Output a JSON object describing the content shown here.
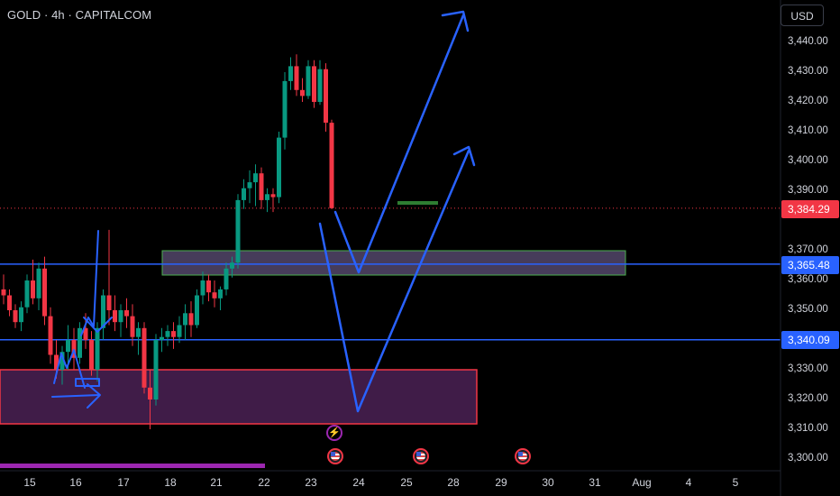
{
  "header": {
    "title": "GOLD · 4h · CAPITALCOM",
    "currency_button": "USD"
  },
  "price_axis": {
    "ticks": [
      "3,440.00",
      "3,430.00",
      "3,420.00",
      "3,410.00",
      "3,400.00",
      "3,390.00",
      "3,370.00",
      "3,360.00",
      "3,350.00",
      "3,330.00",
      "3,320.00",
      "3,310.00",
      "3,300.00"
    ],
    "tick_values": [
      3440,
      3430,
      3420,
      3410,
      3400,
      3390,
      3370,
      3360,
      3350,
      3330,
      3320,
      3310,
      3300
    ],
    "current_price_label": "3,384.29",
    "current_price": 3384.29,
    "level_labels": [
      {
        "text": "3,365.48",
        "value": 3365.48
      },
      {
        "text": "3,340.09",
        "value": 3340.09
      }
    ]
  },
  "time_axis": {
    "ticks": [
      "15",
      "16",
      "17",
      "18",
      "21",
      "22",
      "23",
      "24",
      "25",
      "28",
      "29",
      "30",
      "31",
      "Aug",
      "4",
      "5"
    ]
  },
  "colors": {
    "up": "#089981",
    "down": "#f23645",
    "drawing": "#2962ff",
    "zone_green": "#4caf50",
    "zone_red": "#f23645",
    "background": "#000000"
  },
  "events": {
    "icons": [
      "lightning-icon",
      "us-flag-icon",
      "us-flag-icon",
      "us-flag-icon"
    ]
  },
  "chart_data": {
    "type": "candlestick",
    "candles": [
      [
        3357,
        3362,
        3352,
        3355
      ],
      [
        3355,
        3357,
        3348,
        3350
      ],
      [
        3350,
        3352,
        3344,
        3346
      ],
      [
        3346,
        3353,
        3343,
        3351
      ],
      [
        3351,
        3362,
        3349,
        3360
      ],
      [
        3360,
        3367,
        3352,
        3354
      ],
      [
        3354,
        3366,
        3350,
        3364
      ],
      [
        3364,
        3368,
        3345,
        3348
      ],
      [
        3348,
        3351,
        3332,
        3335
      ],
      [
        3335,
        3340,
        3327,
        3330
      ],
      [
        3330,
        3338,
        3325,
        3336
      ],
      [
        3336,
        3345,
        3330,
        3340
      ],
      [
        3340,
        3344,
        3330,
        3334
      ],
      [
        3334,
        3346,
        3332,
        3344
      ],
      [
        3344,
        3349,
        3337,
        3340
      ],
      [
        3340,
        3343,
        3328,
        3330
      ],
      [
        3330,
        3346,
        3326,
        3344
      ],
      [
        3344,
        3357,
        3340,
        3355
      ],
      [
        3355,
        3377,
        3345,
        3350
      ],
      [
        3350,
        3355,
        3343,
        3346
      ],
      [
        3346,
        3352,
        3341,
        3350
      ],
      [
        3350,
        3354,
        3344,
        3348
      ],
      [
        3348,
        3352,
        3338,
        3341
      ],
      [
        3341,
        3346,
        3335,
        3344
      ],
      [
        3344,
        3346,
        3322,
        3324
      ],
      [
        3324,
        3330,
        3310,
        3320
      ],
      [
        3320,
        3342,
        3318,
        3340
      ],
      [
        3340,
        3344,
        3336,
        3341
      ],
      [
        3341,
        3345,
        3338,
        3343
      ],
      [
        3343,
        3346,
        3337,
        3341
      ],
      [
        3341,
        3348,
        3339,
        3345
      ],
      [
        3345,
        3352,
        3340,
        3349
      ],
      [
        3349,
        3353,
        3341,
        3345
      ],
      [
        3345,
        3357,
        3344,
        3355
      ],
      [
        3355,
        3363,
        3352,
        3360
      ],
      [
        3360,
        3362,
        3353,
        3356
      ],
      [
        3356,
        3360,
        3351,
        3354
      ],
      [
        3354,
        3358,
        3350,
        3357
      ],
      [
        3357,
        3366,
        3355,
        3364
      ],
      [
        3364,
        3368,
        3361,
        3366
      ],
      [
        3366,
        3389,
        3364,
        3387
      ],
      [
        3387,
        3394,
        3384,
        3391
      ],
      [
        3391,
        3397,
        3386,
        3393
      ],
      [
        3393,
        3399,
        3385,
        3396
      ],
      [
        3396,
        3398,
        3384,
        3387
      ],
      [
        3387,
        3391,
        3383,
        3389
      ],
      [
        3389,
        3391,
        3383,
        3388
      ],
      [
        3388,
        3410,
        3386,
        3408
      ],
      [
        3408,
        3430,
        3404,
        3427
      ],
      [
        3427,
        3435,
        3424,
        3432
      ],
      [
        3432,
        3436,
        3422,
        3424
      ],
      [
        3424,
        3428,
        3420,
        3422
      ],
      [
        3422,
        3434,
        3421,
        3432
      ],
      [
        3432,
        3434,
        3418,
        3420
      ],
      [
        3420,
        3434,
        3419,
        3431
      ],
      [
        3431,
        3433,
        3410,
        3413
      ],
      [
        3413,
        3414,
        3384,
        3384.29
      ]
    ],
    "levels": [
      3365.48,
      3340.09
    ],
    "zones": [
      {
        "name": "demand-zone-upper",
        "from": 3361,
        "to": 3370
      },
      {
        "name": "demand-zone-lower",
        "from": 3312,
        "to": 3330
      }
    ],
    "current_price": 3384.29,
    "ylim": [
      3296,
      3448
    ]
  }
}
